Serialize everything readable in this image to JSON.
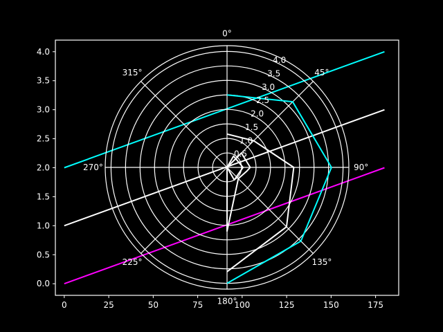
{
  "chart_data": [
    {
      "type": "line",
      "title": "",
      "xlabel": "",
      "ylabel": "",
      "xlim": [
        -5,
        188
      ],
      "ylim": [
        -0.2,
        4.2
      ],
      "xticks": [
        0,
        25,
        50,
        75,
        100,
        125,
        150,
        175
      ],
      "yticks": [
        0.0,
        0.5,
        1.0,
        1.5,
        2.0,
        2.5,
        3.0,
        3.5,
        4.0
      ],
      "grid": false,
      "series": [
        {
          "color": "#00ffff",
          "x": [
            0,
            180
          ],
          "y": [
            2.0,
            4.0
          ]
        },
        {
          "color": "#ffffff",
          "x": [
            0,
            180
          ],
          "y": [
            1.0,
            3.0
          ]
        },
        {
          "color": "#ff00ff",
          "x": [
            0,
            180
          ],
          "y": [
            0.0,
            2.0
          ]
        }
      ]
    },
    {
      "type": "line",
      "subtype": "polar",
      "theta_zero": "N",
      "theta_direction": "clockwise",
      "angle_labels": [
        "0°",
        "45°",
        "90°",
        "135°",
        "180°",
        "225°",
        "270°",
        "315°"
      ],
      "angle_ticks_deg": [
        0,
        45,
        90,
        135,
        180,
        225,
        270,
        315
      ],
      "radial_labels": [
        "0.5",
        "1.0",
        "1.5",
        "2.0",
        "2.5",
        "3.0",
        "3.5",
        "4.0"
      ],
      "radial_ticks": [
        0.5,
        1.0,
        1.5,
        2.0,
        2.5,
        3.0,
        3.5,
        4.0
      ],
      "rmax": 4.2,
      "radial_label_angle_deg": 22.5,
      "grid": true,
      "series": [
        {
          "color": "#00ffff",
          "points": [
            [
              0,
              2.5
            ],
            [
              45,
              3.2
            ],
            [
              90,
              3.6
            ],
            [
              135,
              3.6
            ],
            [
              180,
              4.0
            ]
          ]
        },
        {
          "color": "#ffffff",
          "points": [
            [
              0,
              1.15
            ],
            [
              45,
              1.3
            ],
            [
              90,
              2.3
            ],
            [
              135,
              2.9
            ],
            [
              180,
              3.6
            ]
          ]
        },
        {
          "color": "#ffffff",
          "points": [
            [
              0,
              0.0
            ],
            [
              45,
              0.7
            ],
            [
              90,
              0.8
            ],
            [
              100,
              0.7
            ],
            [
              135,
              0.55
            ],
            [
              180,
              2.2
            ],
            [
              270,
              0.0
            ],
            [
              360,
              0.0
            ]
          ]
        },
        {
          "color": "#ffffff",
          "points": [
            [
              0,
              0.0
            ],
            [
              30,
              0.45
            ],
            [
              90,
              0.55
            ],
            [
              150,
              0.5
            ],
            [
              220,
              0.0
            ]
          ]
        }
      ]
    }
  ]
}
